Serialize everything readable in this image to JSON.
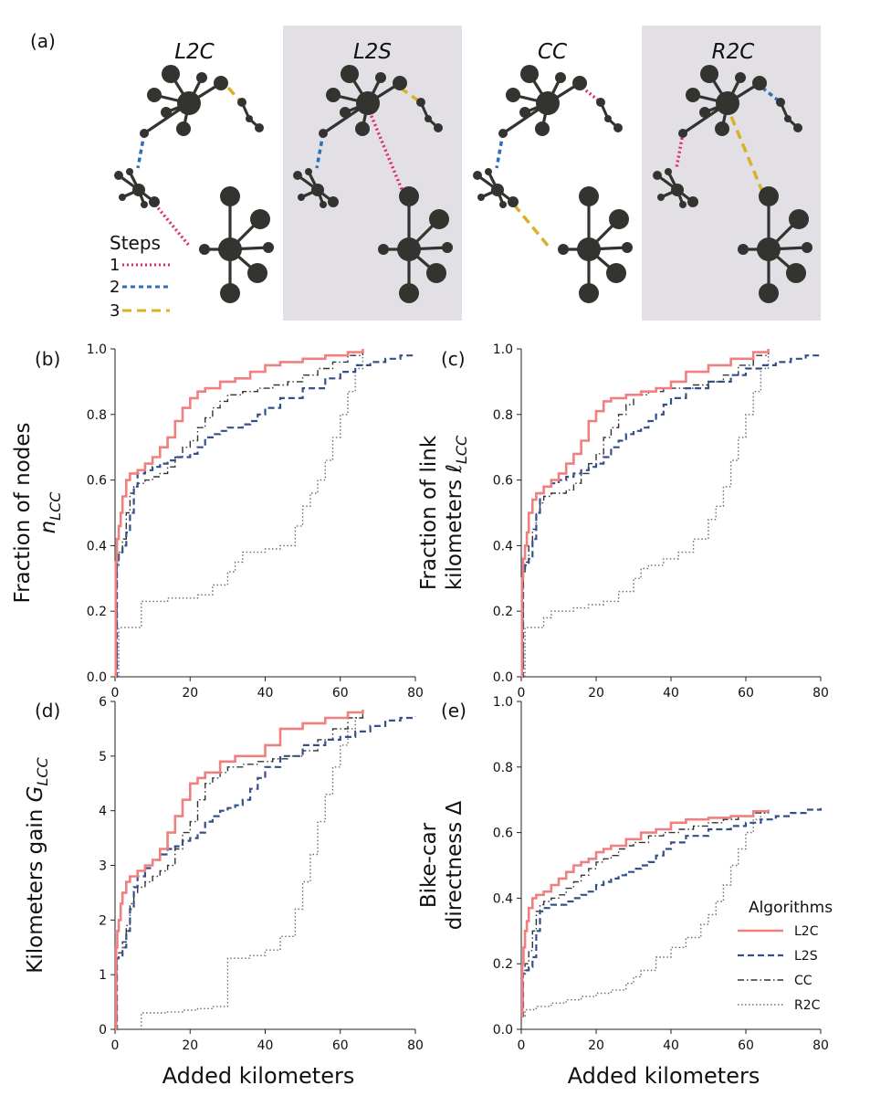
{
  "panel_labels": [
    "(a)",
    "(b)",
    "(c)",
    "(d)",
    "(e)"
  ],
  "schematic": {
    "algorithms": [
      "L2C",
      "L2S",
      "CC",
      "R2C"
    ],
    "steps_title": "Steps",
    "steps": [
      {
        "label": "1",
        "color": "#e0296a"
      },
      {
        "label": "2",
        "color": "#2f6fb5"
      },
      {
        "label": "3",
        "color": "#d8b02a"
      }
    ],
    "node_color": "#333330",
    "shade_color": "#e2e0e4"
  },
  "x_axis_label": "Added kilometers",
  "chart_data": [
    {
      "id": "b",
      "type": "line",
      "ylabel": [
        "Fraction of nodes",
        "n_LCC"
      ],
      "xlim": [
        0,
        80
      ],
      "ylim": [
        0,
        1
      ],
      "xticks": [
        "0",
        "20",
        "40",
        "60",
        "80"
      ],
      "yticks": [
        "0.0",
        "0.2",
        "0.4",
        "0.6",
        "0.8",
        "1.0"
      ],
      "series": [
        {
          "name": "L2C",
          "x": [
            0,
            0.2,
            0.5,
            1,
            1.5,
            2,
            3,
            4,
            6,
            8,
            10,
            12,
            14,
            16,
            18,
            20,
            22,
            24,
            28,
            32,
            36,
            40,
            44,
            50,
            56,
            62,
            66
          ],
          "y": [
            0,
            0.35,
            0.42,
            0.46,
            0.5,
            0.55,
            0.6,
            0.62,
            0.63,
            0.65,
            0.67,
            0.7,
            0.73,
            0.78,
            0.82,
            0.85,
            0.87,
            0.88,
            0.9,
            0.91,
            0.93,
            0.95,
            0.96,
            0.97,
            0.98,
            0.99,
            1.0
          ]
        },
        {
          "name": "L2S",
          "x": [
            0,
            0.5,
            1,
            2,
            3,
            4,
            5,
            6,
            8,
            10,
            12,
            14,
            16,
            18,
            20,
            22,
            24,
            26,
            28,
            30,
            32,
            34,
            36,
            38,
            40,
            44,
            50,
            56,
            60,
            64,
            68,
            72,
            76,
            80
          ],
          "y": [
            0,
            0.35,
            0.38,
            0.4,
            0.44,
            0.5,
            0.58,
            0.62,
            0.63,
            0.64,
            0.65,
            0.66,
            0.67,
            0.67,
            0.68,
            0.7,
            0.73,
            0.74,
            0.75,
            0.76,
            0.76,
            0.77,
            0.78,
            0.8,
            0.82,
            0.85,
            0.88,
            0.91,
            0.93,
            0.95,
            0.96,
            0.97,
            0.98,
            0.98
          ]
        },
        {
          "name": "CC",
          "x": [
            0,
            0.5,
            1,
            2,
            3,
            4,
            5,
            6,
            8,
            10,
            12,
            14,
            16,
            18,
            20,
            22,
            24,
            26,
            28,
            30,
            34,
            38,
            42,
            46,
            50,
            54,
            58,
            62,
            66
          ],
          "y": [
            0,
            0.34,
            0.38,
            0.42,
            0.5,
            0.56,
            0.58,
            0.59,
            0.6,
            0.61,
            0.62,
            0.64,
            0.67,
            0.7,
            0.72,
            0.76,
            0.79,
            0.82,
            0.84,
            0.86,
            0.87,
            0.88,
            0.89,
            0.9,
            0.92,
            0.94,
            0.96,
            0.98,
            1.0
          ]
        },
        {
          "name": "R2C",
          "x": [
            0,
            1,
            2,
            6,
            7,
            10,
            14,
            18,
            22,
            26,
            30,
            32,
            34,
            36,
            40,
            44,
            48,
            50,
            52,
            54,
            56,
            58,
            60,
            62,
            64,
            66
          ],
          "y": [
            0,
            0.15,
            0.15,
            0.15,
            0.23,
            0.23,
            0.24,
            0.24,
            0.25,
            0.28,
            0.32,
            0.35,
            0.38,
            0.38,
            0.39,
            0.4,
            0.46,
            0.52,
            0.56,
            0.6,
            0.66,
            0.73,
            0.8,
            0.87,
            0.94,
            1.0
          ]
        }
      ]
    },
    {
      "id": "c",
      "type": "line",
      "ylabel": [
        "Fraction of link",
        "kilometers ℓ_LCC"
      ],
      "xlim": [
        0,
        80
      ],
      "ylim": [
        0,
        1
      ],
      "xticks": [
        "0",
        "20",
        "40",
        "60",
        "80"
      ],
      "yticks": [
        "0.0",
        "0.2",
        "0.4",
        "0.6",
        "0.8",
        "1.0"
      ],
      "series": [
        {
          "name": "L2C",
          "x": [
            0,
            0.2,
            0.5,
            1,
            1.5,
            2,
            3,
            4,
            6,
            8,
            10,
            12,
            14,
            16,
            18,
            20,
            22,
            24,
            28,
            32,
            36,
            40,
            44,
            50,
            56,
            62,
            66
          ],
          "y": [
            0,
            0.3,
            0.36,
            0.4,
            0.44,
            0.5,
            0.54,
            0.56,
            0.58,
            0.6,
            0.62,
            0.65,
            0.68,
            0.72,
            0.78,
            0.81,
            0.84,
            0.85,
            0.86,
            0.87,
            0.88,
            0.9,
            0.93,
            0.95,
            0.97,
            0.99,
            1.0
          ]
        },
        {
          "name": "L2S",
          "x": [
            0,
            0.5,
            1,
            2,
            3,
            4,
            5,
            6,
            8,
            10,
            12,
            14,
            16,
            18,
            20,
            22,
            24,
            26,
            28,
            30,
            32,
            34,
            36,
            38,
            40,
            44,
            50,
            56,
            60,
            64,
            68,
            72,
            76,
            80
          ],
          "y": [
            0,
            0.33,
            0.34,
            0.36,
            0.42,
            0.5,
            0.56,
            0.58,
            0.59,
            0.6,
            0.61,
            0.62,
            0.63,
            0.64,
            0.65,
            0.67,
            0.7,
            0.72,
            0.74,
            0.75,
            0.76,
            0.78,
            0.8,
            0.83,
            0.85,
            0.88,
            0.9,
            0.92,
            0.94,
            0.95,
            0.96,
            0.97,
            0.98,
            0.98
          ]
        },
        {
          "name": "CC",
          "x": [
            0,
            0.5,
            1,
            2,
            3,
            4,
            5,
            6,
            8,
            10,
            12,
            14,
            16,
            18,
            20,
            22,
            24,
            26,
            28,
            30,
            34,
            38,
            42,
            46,
            50,
            54,
            58,
            62,
            66
          ],
          "y": [
            0,
            0.32,
            0.35,
            0.4,
            0.45,
            0.5,
            0.53,
            0.55,
            0.56,
            0.56,
            0.57,
            0.59,
            0.62,
            0.65,
            0.68,
            0.73,
            0.76,
            0.8,
            0.83,
            0.86,
            0.87,
            0.88,
            0.88,
            0.89,
            0.9,
            0.92,
            0.95,
            0.98,
            1.0
          ]
        },
        {
          "name": "R2C",
          "x": [
            0,
            1,
            2,
            4,
            6,
            8,
            10,
            14,
            18,
            22,
            26,
            30,
            32,
            34,
            38,
            42,
            46,
            50,
            52,
            54,
            56,
            58,
            60,
            62,
            64,
            66
          ],
          "y": [
            0,
            0.15,
            0.15,
            0.15,
            0.18,
            0.2,
            0.2,
            0.21,
            0.22,
            0.23,
            0.26,
            0.3,
            0.33,
            0.34,
            0.36,
            0.38,
            0.42,
            0.48,
            0.52,
            0.58,
            0.66,
            0.73,
            0.8,
            0.87,
            0.94,
            1.0
          ]
        }
      ]
    },
    {
      "id": "d",
      "type": "line",
      "ylabel": [
        "Kilometers gain G_LCC"
      ],
      "xlim": [
        0,
        80
      ],
      "ylim": [
        0,
        6
      ],
      "xticks": [
        "0",
        "20",
        "40",
        "60",
        "80"
      ],
      "yticks": [
        "0",
        "1",
        "2",
        "3",
        "4",
        "5",
        "6"
      ],
      "series": [
        {
          "name": "L2C",
          "x": [
            0,
            0.3,
            0.6,
            1,
            1.5,
            2,
            3,
            4,
            6,
            8,
            10,
            12,
            14,
            16,
            18,
            20,
            22,
            24,
            28,
            32,
            36,
            40,
            44,
            50,
            56,
            62,
            66
          ],
          "y": [
            0,
            1.5,
            1.8,
            2.0,
            2.3,
            2.5,
            2.7,
            2.8,
            2.9,
            3.0,
            3.1,
            3.3,
            3.6,
            3.9,
            4.2,
            4.5,
            4.6,
            4.7,
            4.9,
            5.0,
            5.0,
            5.2,
            5.5,
            5.6,
            5.7,
            5.8,
            5.85
          ]
        },
        {
          "name": "L2S",
          "x": [
            0,
            0.5,
            1,
            2,
            3,
            4,
            5,
            6,
            8,
            10,
            12,
            14,
            16,
            18,
            20,
            22,
            24,
            26,
            28,
            30,
            32,
            34,
            36,
            38,
            40,
            44,
            50,
            56,
            60,
            64,
            68,
            72,
            76,
            80
          ],
          "y": [
            0,
            1.3,
            1.35,
            1.5,
            1.8,
            2.2,
            2.6,
            2.8,
            2.95,
            3.1,
            3.2,
            3.3,
            3.35,
            3.45,
            3.5,
            3.6,
            3.8,
            3.9,
            4.0,
            4.05,
            4.1,
            4.2,
            4.4,
            4.6,
            4.8,
            5.0,
            5.2,
            5.3,
            5.35,
            5.45,
            5.55,
            5.65,
            5.7,
            5.72
          ]
        },
        {
          "name": "CC",
          "x": [
            0,
            0.5,
            1,
            2,
            3,
            4,
            5,
            6,
            8,
            10,
            12,
            14,
            16,
            18,
            20,
            22,
            24,
            26,
            28,
            30,
            34,
            38,
            42,
            46,
            50,
            54,
            58,
            62,
            66
          ],
          "y": [
            0,
            1.3,
            1.4,
            1.6,
            1.9,
            2.3,
            2.5,
            2.6,
            2.7,
            2.8,
            2.9,
            3.0,
            3.3,
            3.6,
            3.8,
            4.2,
            4.5,
            4.6,
            4.7,
            4.8,
            4.85,
            4.9,
            4.95,
            5.0,
            5.1,
            5.3,
            5.5,
            5.7,
            5.85
          ]
        },
        {
          "name": "R2C",
          "x": [
            0,
            3,
            7,
            10,
            14,
            18,
            22,
            26,
            30,
            34,
            36,
            40,
            44,
            48,
            50,
            52,
            54,
            56,
            58,
            60,
            62,
            64,
            66
          ],
          "y": [
            0,
            0,
            0.3,
            0.3,
            0.32,
            0.35,
            0.38,
            0.42,
            1.3,
            1.3,
            1.35,
            1.45,
            1.7,
            2.2,
            2.7,
            3.2,
            3.8,
            4.3,
            4.8,
            5.2,
            5.5,
            5.7,
            5.85
          ]
        }
      ]
    },
    {
      "id": "e",
      "type": "line",
      "ylabel": [
        "Bike-car",
        "directness Δ"
      ],
      "xlim": [
        0,
        80
      ],
      "ylim": [
        0,
        1
      ],
      "xticks": [
        "0",
        "20",
        "40",
        "60",
        "80"
      ],
      "yticks": [
        "0.0",
        "0.2",
        "0.4",
        "0.6",
        "0.8",
        "1.0"
      ],
      "series": [
        {
          "name": "L2C",
          "x": [
            0,
            0.3,
            0.6,
            1,
            1.5,
            2,
            3,
            4,
            6,
            8,
            10,
            12,
            14,
            16,
            18,
            20,
            22,
            24,
            28,
            32,
            36,
            40,
            44,
            50,
            56,
            62,
            66
          ],
          "y": [
            0.04,
            0.2,
            0.25,
            0.3,
            0.33,
            0.37,
            0.4,
            0.41,
            0.42,
            0.44,
            0.46,
            0.48,
            0.5,
            0.51,
            0.52,
            0.54,
            0.55,
            0.56,
            0.58,
            0.6,
            0.61,
            0.63,
            0.64,
            0.645,
            0.65,
            0.665,
            0.67
          ]
        },
        {
          "name": "L2S",
          "x": [
            0,
            0.5,
            1,
            2,
            3,
            4,
            5,
            6,
            8,
            10,
            12,
            14,
            16,
            18,
            20,
            22,
            24,
            26,
            28,
            30,
            32,
            34,
            36,
            38,
            40,
            44,
            50,
            56,
            60,
            64,
            68,
            72,
            76,
            80
          ],
          "y": [
            0.04,
            0.17,
            0.18,
            0.19,
            0.22,
            0.3,
            0.36,
            0.37,
            0.38,
            0.38,
            0.39,
            0.4,
            0.41,
            0.42,
            0.44,
            0.45,
            0.46,
            0.47,
            0.48,
            0.49,
            0.5,
            0.51,
            0.53,
            0.55,
            0.57,
            0.59,
            0.61,
            0.62,
            0.63,
            0.64,
            0.65,
            0.66,
            0.67,
            0.675
          ]
        },
        {
          "name": "CC",
          "x": [
            0,
            0.5,
            1,
            2,
            3,
            4,
            5,
            6,
            8,
            10,
            12,
            14,
            16,
            18,
            20,
            22,
            24,
            26,
            28,
            30,
            34,
            38,
            42,
            46,
            50,
            54,
            58,
            62,
            66
          ],
          "y": [
            0.04,
            0.18,
            0.2,
            0.24,
            0.3,
            0.36,
            0.38,
            0.39,
            0.4,
            0.41,
            0.43,
            0.45,
            0.47,
            0.49,
            0.51,
            0.52,
            0.53,
            0.55,
            0.56,
            0.57,
            0.59,
            0.6,
            0.61,
            0.62,
            0.63,
            0.64,
            0.65,
            0.66,
            0.67
          ]
        },
        {
          "name": "R2C",
          "x": [
            0,
            1,
            2,
            4,
            8,
            12,
            16,
            20,
            24,
            28,
            30,
            32,
            36,
            40,
            44,
            48,
            50,
            52,
            54,
            56,
            58,
            60,
            62,
            64,
            66
          ],
          "y": [
            0.04,
            0.06,
            0.06,
            0.07,
            0.08,
            0.09,
            0.1,
            0.11,
            0.12,
            0.14,
            0.16,
            0.18,
            0.22,
            0.25,
            0.28,
            0.32,
            0.35,
            0.39,
            0.44,
            0.5,
            0.55,
            0.6,
            0.64,
            0.66,
            0.67
          ]
        }
      ]
    }
  ],
  "legend": {
    "title": "Algorithms",
    "placement": "lower-right of panel (e)",
    "entries": [
      {
        "name": "L2C",
        "color": "#f08080",
        "style": "solid"
      },
      {
        "name": "L2S",
        "color": "#34508a",
        "style": "dashed"
      },
      {
        "name": "CC",
        "color": "#333333",
        "style": "dashdot"
      },
      {
        "name": "R2C",
        "color": "#6a6a6a",
        "style": "dotted"
      }
    ]
  }
}
